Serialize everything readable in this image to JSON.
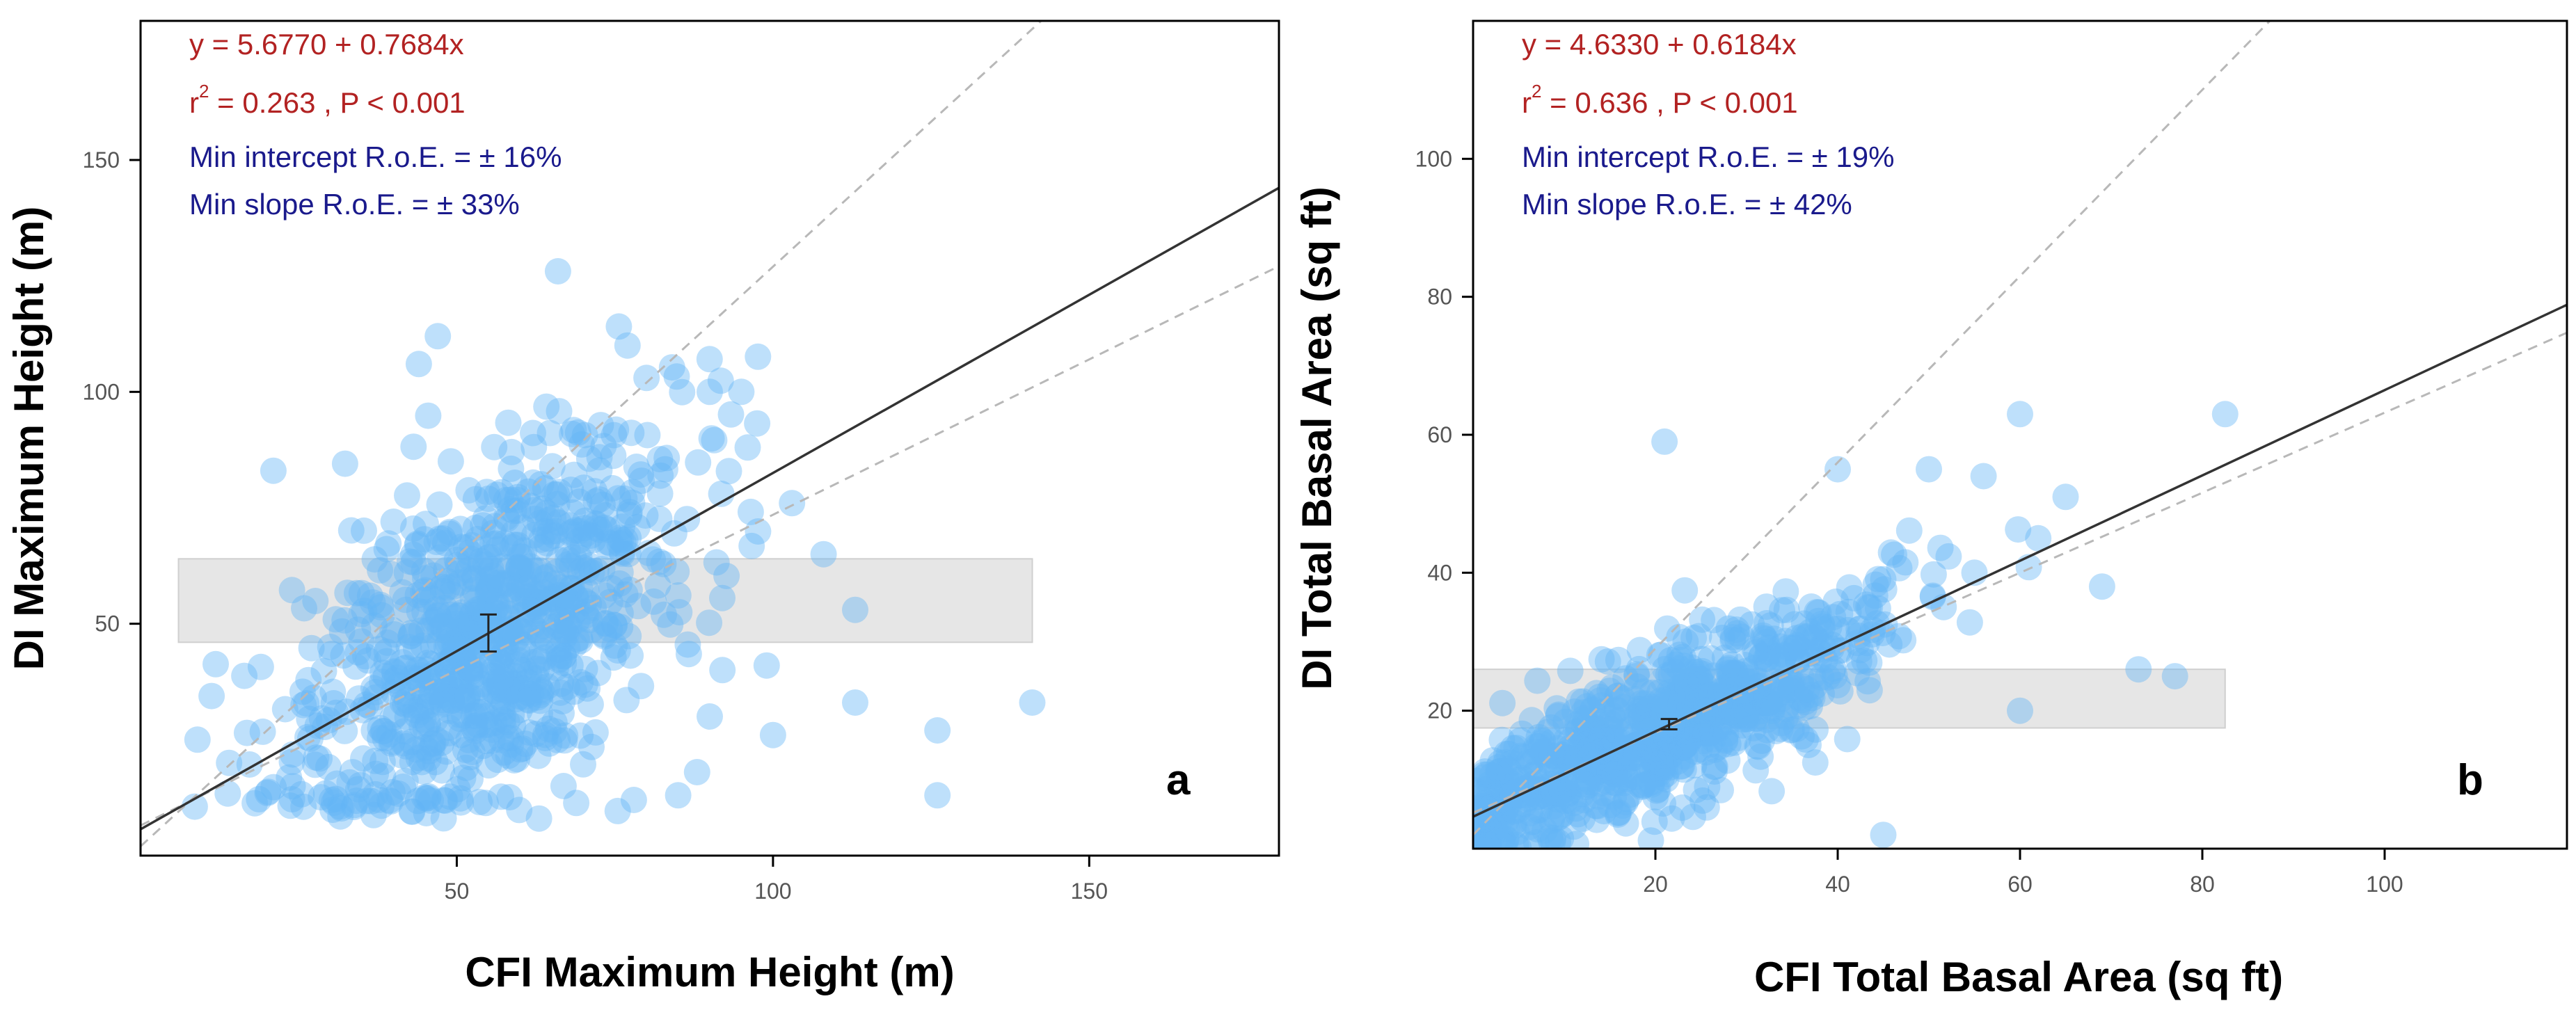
{
  "chart_data": [
    {
      "type": "scatter",
      "panel_label": "a",
      "xlabel": "CFI Maximum Height (m)",
      "ylabel": "DI Maximum Height (m)",
      "xlim": [
        0,
        180
      ],
      "ylim": [
        0,
        180
      ],
      "xticks": [
        50,
        100,
        150
      ],
      "yticks": [
        50,
        100,
        150
      ],
      "regression": {
        "intercept": 5.677,
        "slope": 0.7684
      },
      "ci_upper": {
        "intercept": 2.0,
        "slope": 1.25
      },
      "ci_lower": {
        "intercept": 6.5,
        "slope": 0.67
      },
      "mean_point": {
        "x": 55,
        "y": 48,
        "err_low": 44,
        "err_high": 52
      },
      "band": {
        "x_start": 6,
        "x_end": 141,
        "y_low": 46,
        "y_high": 64
      },
      "annotations": {
        "equation": "y = 5.6770 + 0.7684x",
        "r2_prefix": "r",
        "r2_sup": "2",
        "r2_rest": " = 0.263 , P < 0.001",
        "intercept_roe": "Min intercept R.o.E. = ± 16%",
        "slope_roe": "Min slope R.o.E. = ± 33%"
      },
      "cloud": {
        "x_center": 55,
        "x_spread": 15,
        "x_min": 5,
        "x_max": 98,
        "y_spread": 18,
        "y_min": 8,
        "y_max": 126,
        "count": 900
      },
      "outliers": [
        [
          21,
          83
        ],
        [
          9,
          25
        ],
        [
          14,
          20
        ],
        [
          92,
          40
        ],
        [
          96,
          88
        ],
        [
          99,
          41
        ],
        [
          100,
          26
        ],
        [
          103,
          76
        ],
        [
          108,
          65
        ],
        [
          113,
          53
        ],
        [
          113,
          33
        ],
        [
          126,
          27
        ],
        [
          126,
          13
        ],
        [
          141,
          33
        ],
        [
          90,
          100
        ],
        [
          95,
          100
        ],
        [
          80,
          103
        ],
        [
          77,
          110
        ],
        [
          66,
          126
        ],
        [
          30,
          45
        ],
        [
          28,
          28
        ],
        [
          40,
          72
        ],
        [
          63,
          8
        ],
        [
          47,
          112
        ],
        [
          44,
          106
        ],
        [
          90,
          30
        ],
        [
          88,
          18
        ],
        [
          85,
          13
        ],
        [
          78,
          12
        ]
      ],
      "colors": {
        "point": "#64b4f5",
        "line": "#333333",
        "ci": "#b8b8b8",
        "band": "#e6e6e6",
        "eq_text": "#b22222",
        "roe_text": "#1a1a8c"
      }
    },
    {
      "type": "scatter",
      "panel_label": "b",
      "xlabel": "CFI Total Basal Area (sq ft)",
      "ylabel": "DI Total Basal Area (sq ft)",
      "xlim": [
        0,
        120
      ],
      "ylim": [
        0,
        120
      ],
      "xticks": [
        20,
        40,
        60,
        80,
        100
      ],
      "yticks": [
        20,
        40,
        60,
        80,
        100
      ],
      "regression": {
        "intercept": 4.633,
        "slope": 0.6184
      },
      "ci_upper": {
        "intercept": 2.0,
        "slope": 1.35
      },
      "ci_lower": {
        "intercept": 5.2,
        "slope": 0.58
      },
      "mean_point": {
        "x": 21.5,
        "y": 18.0,
        "err_low": 17.3,
        "err_high": 18.8
      },
      "band": {
        "x_start": 0,
        "x_end": 82.5,
        "y_low": 17.5,
        "y_high": 26
      },
      "annotations": {
        "equation": "y = 4.6330 + 0.6184x",
        "r2_prefix": "r",
        "r2_sup": "2",
        "r2_rest": " = 0.636 , P < 0.001",
        "intercept_roe": "Min intercept R.o.E. = ± 19%",
        "slope_roe": "Min slope R.o.E. = ± 42%"
      },
      "cloud": {
        "x_center": 20,
        "x_spread": 13,
        "x_min": 0,
        "x_max": 62,
        "y_spread": 5.5,
        "y_min": 0,
        "y_max": 63,
        "count": 900
      },
      "outliers": [
        [
          21,
          59
        ],
        [
          45,
          2
        ],
        [
          60,
          63
        ],
        [
          65,
          51
        ],
        [
          69,
          38
        ],
        [
          73,
          26
        ],
        [
          77,
          25
        ],
        [
          60,
          20
        ],
        [
          82.5,
          63
        ],
        [
          56,
          54
        ],
        [
          50,
          55
        ],
        [
          40,
          55
        ],
        [
          55,
          40
        ],
        [
          62,
          45
        ]
      ],
      "colors": {
        "point": "#64b4f5",
        "line": "#333333",
        "ci": "#b8b8b8",
        "band": "#e6e6e6",
        "eq_text": "#b22222",
        "roe_text": "#1a1a8c"
      }
    }
  ]
}
